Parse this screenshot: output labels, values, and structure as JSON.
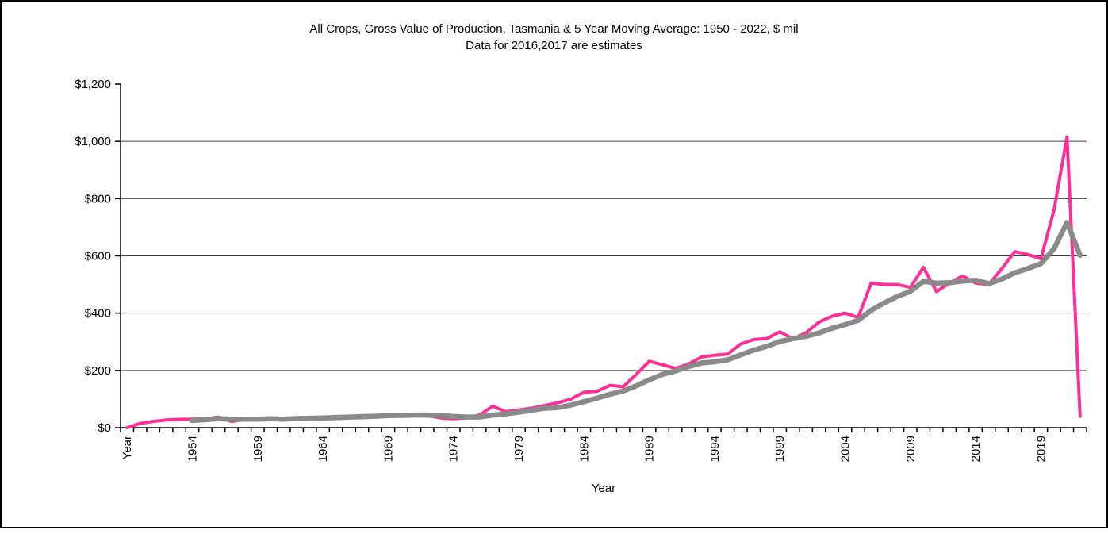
{
  "title": {
    "line1": "All Crops, Gross Value of Production, Tasmania & 5  Year Moving Average: 1950 - 2022, $ mil",
    "line2": "Data for 2016,2017 are estimates"
  },
  "chart_data": {
    "type": "line",
    "title": "All Crops, Gross Value of Production, Tasmania & 5  Year Moving Average: 1950 - 2022, $ mil",
    "subtitle": "Data for 2016,2017 are estimates",
    "xlabel": "Year",
    "ylabel": "",
    "ylim": [
      0,
      1200
    ],
    "ytick_step": 200,
    "ytick_labels": [
      "$0",
      "$200",
      "$400",
      "$600",
      "$800",
      "$1,000",
      "$1,200"
    ],
    "xtick_label_every": 5,
    "xtick_labels_shown": [
      "Year",
      "1954",
      "1959",
      "1964",
      "1969",
      "1974",
      "1979",
      "1984",
      "1989",
      "1994",
      "1999",
      "2004",
      "2009",
      "2014",
      "2019"
    ],
    "grid": true,
    "legend_position": "none",
    "categories": [
      "Year",
      "1950",
      "1951",
      "1952",
      "1953",
      "1954",
      "1955",
      "1956",
      "1957",
      "1958",
      "1959",
      "1960",
      "1961",
      "1962",
      "1963",
      "1964",
      "1965",
      "1966",
      "1967",
      "1968",
      "1969",
      "1970",
      "1971",
      "1972",
      "1973",
      "1974",
      "1975",
      "1976",
      "1977",
      "1978",
      "1979",
      "1980",
      "1981",
      "1982",
      "1983",
      "1984",
      "1985",
      "1986",
      "1987",
      "1988",
      "1989",
      "1990",
      "1991",
      "1992",
      "1993",
      "1994",
      "1995",
      "1996",
      "1997",
      "1998",
      "1999",
      "2000",
      "2001",
      "2002",
      "2003",
      "2004",
      "2005",
      "2006",
      "2007",
      "2008",
      "2009",
      "2010",
      "2011",
      "2012",
      "2013",
      "2014",
      "2015",
      "2016",
      "2017",
      "2018",
      "2019",
      "2020",
      "2021",
      "2022"
    ],
    "series": [
      {
        "id": "gvp-line",
        "name": "All Crops, Gross Value of Production",
        "color": "#FF2D96",
        "stroke_width": 4,
        "values": [
          0,
          15,
          22,
          27,
          29,
          30,
          31,
          37,
          22,
          29,
          31,
          34,
          32,
          35,
          34,
          36,
          39,
          40,
          42,
          43,
          44,
          46,
          44,
          42,
          34,
          31,
          34,
          44,
          75,
          56,
          62,
          68,
          78,
          87,
          100,
          124,
          127,
          148,
          143,
          186,
          232,
          220,
          207,
          222,
          247,
          253,
          257,
          292,
          308,
          311,
          335,
          310,
          331,
          369,
          389,
          400,
          385,
          505,
          500,
          500,
          490,
          560,
          475,
          505,
          530,
          505,
          500,
          555,
          615,
          605,
          590,
          760,
          1015,
          40
        ]
      },
      {
        "id": "moving-average-line",
        "name": "5 Year Moving Average",
        "color": "#8A8A8A",
        "stroke_width": 6.5,
        "values": [
          null,
          null,
          null,
          null,
          null,
          25,
          28,
          31,
          30,
          30,
          30,
          31,
          30,
          32,
          33,
          34,
          35,
          37,
          38,
          40,
          42,
          43,
          44,
          44,
          42,
          39,
          37,
          37,
          44,
          48,
          54,
          61,
          68,
          70,
          79,
          91,
          103,
          117,
          128,
          146,
          167,
          186,
          198,
          213,
          226,
          230,
          237,
          254,
          271,
          284,
          301,
          311,
          319,
          331,
          347,
          360,
          375,
          410,
          436,
          458,
          476,
          511,
          505,
          506,
          512,
          515,
          503,
          519,
          541,
          556,
          573,
          625,
          717,
          602
        ]
      }
    ]
  }
}
